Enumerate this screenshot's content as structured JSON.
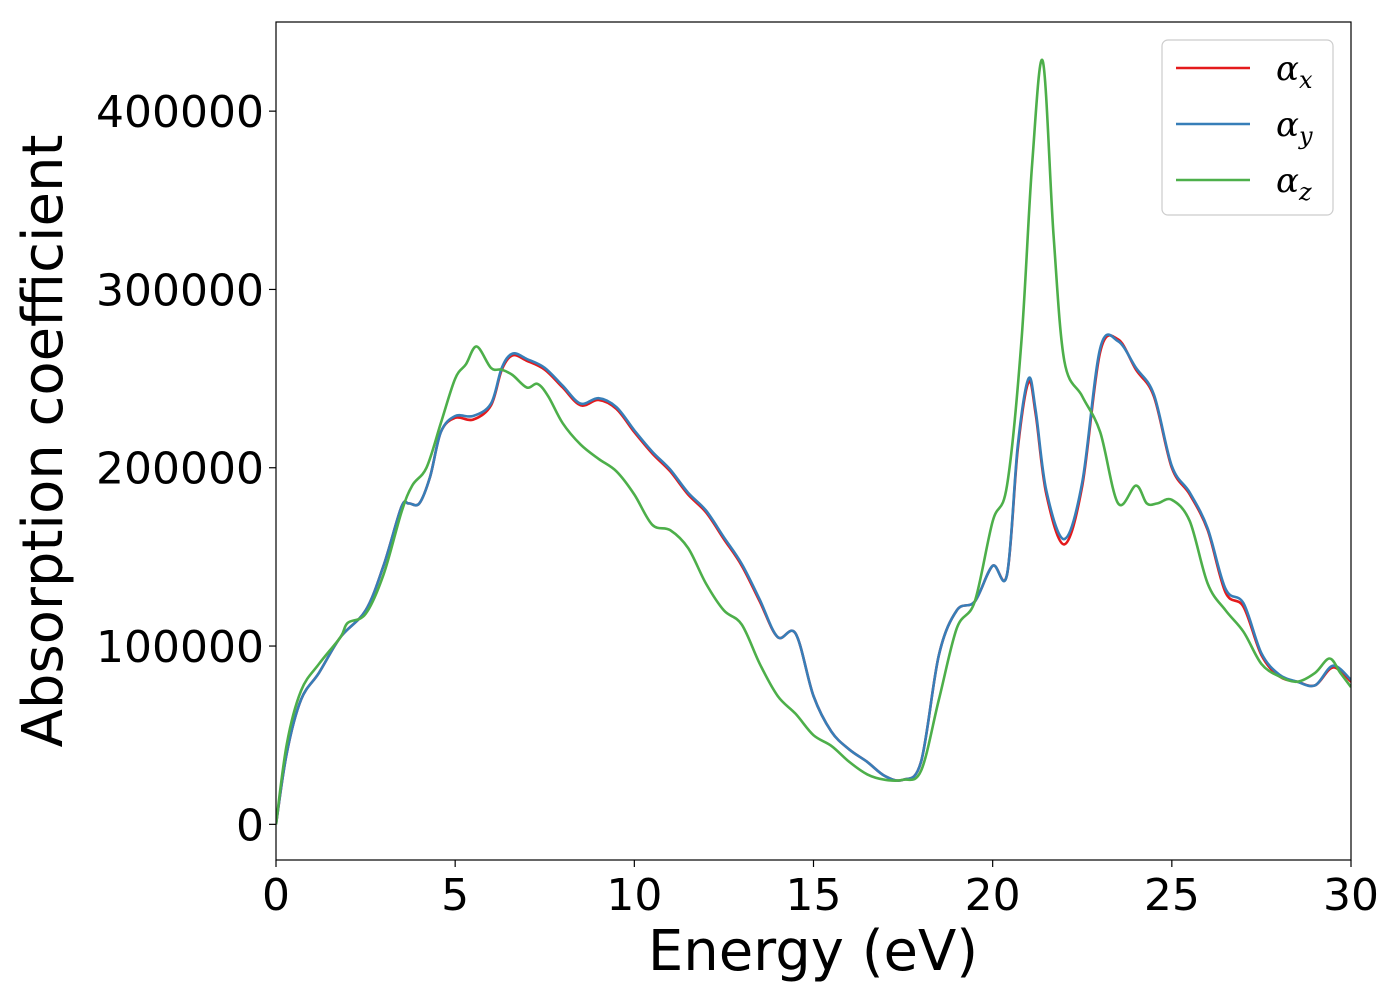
{
  "chart_data": {
    "type": "line",
    "xlabel": "Energy (eV)",
    "ylabel": "Absorption coefficient",
    "xlim": [
      0,
      30
    ],
    "ylim": [
      -20000,
      450000
    ],
    "xticks": [
      0,
      5,
      10,
      15,
      20,
      25,
      30
    ],
    "xtick_labels": [
      "0",
      "5",
      "10",
      "15",
      "20",
      "25",
      "30"
    ],
    "yticks": [
      0,
      100000,
      200000,
      300000,
      400000
    ],
    "ytick_labels": [
      "0",
      "100000",
      "200000",
      "300000",
      "400000"
    ],
    "grid": false,
    "legend_position": "top-right",
    "series": [
      {
        "name": "α_x",
        "legend_base": "α",
        "legend_sub": "x",
        "color": "#e41a1c",
        "x": [
          0,
          0.3,
          0.7,
          1.2,
          1.8,
          2.5,
          3.0,
          3.5,
          3.7,
          4.0,
          4.3,
          4.6,
          5.0,
          5.5,
          6.0,
          6.3,
          6.6,
          7.0,
          7.5,
          8.0,
          8.5,
          9.0,
          9.5,
          10.0,
          10.5,
          11.0,
          11.5,
          12.0,
          12.5,
          13.0,
          13.5,
          14.0,
          14.5,
          15.0,
          15.5,
          16.0,
          16.5,
          17.0,
          17.5,
          18.0,
          18.5,
          19.0,
          19.5,
          20.0,
          20.4,
          20.7,
          21.0,
          21.2,
          21.5,
          22.0,
          22.5,
          23.0,
          23.5,
          24.0,
          24.5,
          25.0,
          25.5,
          26.0,
          26.5,
          27.0,
          27.5,
          28.0,
          28.5,
          29.0,
          29.5,
          30.0
        ],
        "values": [
          0,
          40000,
          70000,
          85000,
          105000,
          120000,
          145000,
          178000,
          180000,
          180000,
          195000,
          220000,
          228000,
          227000,
          235000,
          255000,
          263000,
          260000,
          255000,
          245000,
          235000,
          238000,
          233000,
          220000,
          208000,
          198000,
          185000,
          175000,
          160000,
          145000,
          125000,
          105000,
          107000,
          72000,
          52000,
          42000,
          35000,
          27000,
          25000,
          35000,
          95000,
          120000,
          125000,
          145000,
          140000,
          210000,
          248000,
          230000,
          185000,
          157000,
          190000,
          265000,
          272000,
          255000,
          240000,
          200000,
          185000,
          165000,
          130000,
          122000,
          95000,
          83000,
          80000,
          78000,
          88000,
          80000
        ]
      },
      {
        "name": "α_y",
        "legend_base": "α",
        "legend_sub": "y",
        "color": "#377eb8",
        "x": [
          0,
          0.3,
          0.7,
          1.2,
          1.8,
          2.5,
          3.0,
          3.5,
          3.7,
          4.0,
          4.3,
          4.6,
          5.0,
          5.5,
          6.0,
          6.3,
          6.6,
          7.0,
          7.5,
          8.0,
          8.5,
          9.0,
          9.5,
          10.0,
          10.5,
          11.0,
          11.5,
          12.0,
          12.5,
          13.0,
          13.5,
          14.0,
          14.5,
          15.0,
          15.5,
          16.0,
          16.5,
          17.0,
          17.5,
          18.0,
          18.5,
          19.0,
          19.5,
          20.0,
          20.4,
          20.7,
          21.0,
          21.2,
          21.5,
          22.0,
          22.5,
          23.0,
          23.5,
          24.0,
          24.5,
          25.0,
          25.5,
          26.0,
          26.5,
          27.0,
          27.5,
          28.0,
          28.5,
          29.0,
          29.5,
          30.0
        ],
        "values": [
          0,
          40000,
          70000,
          85000,
          105000,
          120000,
          145000,
          178000,
          180000,
          180000,
          195000,
          220000,
          229000,
          229000,
          236000,
          256000,
          264000,
          261000,
          256000,
          246000,
          236000,
          239000,
          234000,
          221000,
          209000,
          199000,
          186000,
          176000,
          161000,
          146000,
          126000,
          105000,
          107000,
          72000,
          52000,
          42000,
          35000,
          27000,
          25000,
          35000,
          95000,
          120000,
          125000,
          145000,
          140000,
          212000,
          250000,
          232000,
          187000,
          160000,
          192000,
          267000,
          271000,
          256000,
          241000,
          201000,
          186000,
          166000,
          132000,
          124000,
          96000,
          84000,
          80000,
          78000,
          89000,
          81000
        ]
      },
      {
        "name": "α_z",
        "legend_base": "α",
        "legend_sub": "z",
        "color": "#4daf4a",
        "x": [
          0,
          0.3,
          0.7,
          1.2,
          1.8,
          2.0,
          2.5,
          3.0,
          3.5,
          3.8,
          4.2,
          4.6,
          5.0,
          5.3,
          5.6,
          6.0,
          6.3,
          6.6,
          7.0,
          7.3,
          7.6,
          8.0,
          8.5,
          9.0,
          9.5,
          10.0,
          10.5,
          11.0,
          11.5,
          12.0,
          12.5,
          13.0,
          13.5,
          14.0,
          14.5,
          15.0,
          15.5,
          16.0,
          16.5,
          17.0,
          17.5,
          18.0,
          18.5,
          19.0,
          19.5,
          20.0,
          20.4,
          20.8,
          21.1,
          21.4,
          21.7,
          22.0,
          22.5,
          23.0,
          23.5,
          24.0,
          24.3,
          24.6,
          25.0,
          25.5,
          26.0,
          26.5,
          27.0,
          27.5,
          28.0,
          28.5,
          29.0,
          29.4,
          29.7,
          30.0
        ],
        "values": [
          0,
          45000,
          75000,
          90000,
          105000,
          113000,
          118000,
          140000,
          175000,
          190000,
          200000,
          225000,
          250000,
          258000,
          268000,
          256000,
          255000,
          252000,
          245000,
          247000,
          240000,
          225000,
          213000,
          205000,
          198000,
          185000,
          168000,
          165000,
          155000,
          135000,
          120000,
          112000,
          90000,
          72000,
          62000,
          50000,
          44000,
          35000,
          28000,
          25000,
          25000,
          30000,
          70000,
          110000,
          125000,
          170000,
          190000,
          270000,
          370000,
          428000,
          330000,
          260000,
          240000,
          220000,
          180000,
          190000,
          180000,
          180000,
          182000,
          170000,
          135000,
          120000,
          108000,
          90000,
          83000,
          80000,
          85000,
          93000,
          85000,
          77000
        ]
      }
    ]
  }
}
